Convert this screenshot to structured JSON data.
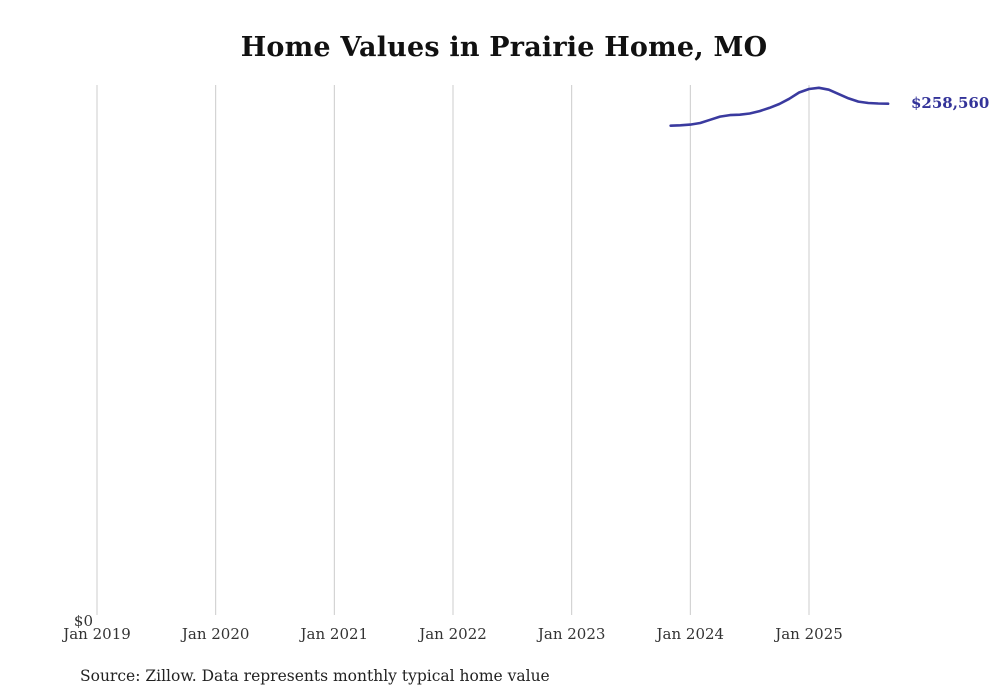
{
  "title": "Home Values in Prairie Home, MO",
  "source_note": "Source: Zillow. Data represents monthly typical home value",
  "end_label": "$258,560",
  "y_zero_label": "$0",
  "colors": {
    "line": "#3a3a9f",
    "label": "#333399",
    "grid": "#cccccc",
    "title": "#111111",
    "axis_text": "#333333"
  },
  "chart_data": {
    "type": "line",
    "title": "Home Values in Prairie Home, MO",
    "xlabel": "",
    "ylabel": "",
    "grid": "vertical-only",
    "legend": "none",
    "x_tick_labels": [
      "Jan 2019",
      "Jan 2020",
      "Jan 2021",
      "Jan 2022",
      "Jan 2023",
      "Jan 2024",
      "Jan 2025"
    ],
    "x_tick_month_index": [
      0,
      12,
      24,
      36,
      48,
      60,
      72
    ],
    "ylim": [
      0,
      268000
    ],
    "end_value": 258560,
    "series": [
      {
        "name": "Typical home value",
        "points": [
          {
            "month": "2023-11",
            "value": 247400
          },
          {
            "month": "2023-12",
            "value": 247600
          },
          {
            "month": "2024-01",
            "value": 248000
          },
          {
            "month": "2024-02",
            "value": 248800
          },
          {
            "month": "2024-03",
            "value": 250400
          },
          {
            "month": "2024-04",
            "value": 252000
          },
          {
            "month": "2024-05",
            "value": 252800
          },
          {
            "month": "2024-06",
            "value": 253000
          },
          {
            "month": "2024-07",
            "value": 253600
          },
          {
            "month": "2024-08",
            "value": 254800
          },
          {
            "month": "2024-09",
            "value": 256400
          },
          {
            "month": "2024-10",
            "value": 258400
          },
          {
            "month": "2024-11",
            "value": 261000
          },
          {
            "month": "2024-12",
            "value": 264200
          },
          {
            "month": "2025-01",
            "value": 266000
          },
          {
            "month": "2025-02",
            "value": 266600
          },
          {
            "month": "2025-03",
            "value": 265600
          },
          {
            "month": "2025-04",
            "value": 263400
          },
          {
            "month": "2025-05",
            "value": 261200
          },
          {
            "month": "2025-06",
            "value": 259600
          },
          {
            "month": "2025-07",
            "value": 258900
          },
          {
            "month": "2025-08",
            "value": 258650
          },
          {
            "month": "2025-09",
            "value": 258560
          }
        ]
      }
    ]
  }
}
